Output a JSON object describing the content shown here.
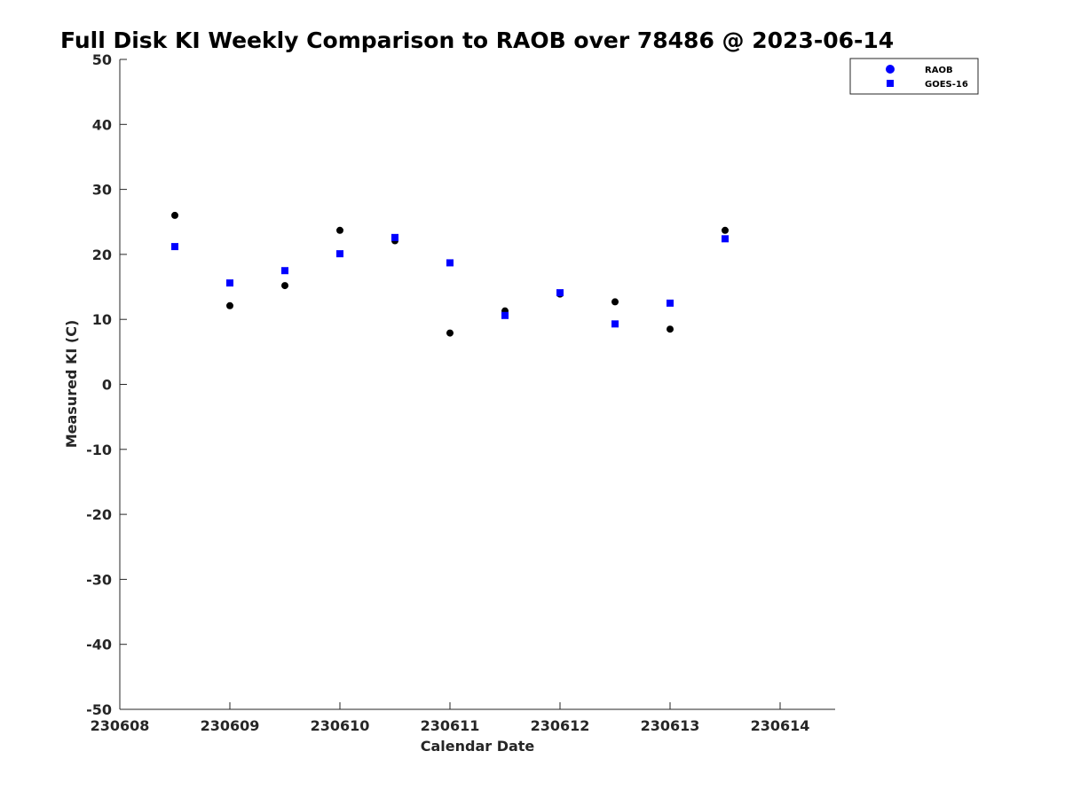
{
  "chart_data": {
    "type": "scatter",
    "title": "Full Disk KI Weekly Comparison to RAOB over 78486 @ 2023-06-14",
    "xlabel": "Calendar Date",
    "ylabel": "Measured KI (C)",
    "xlim": [
      230608,
      230614.5
    ],
    "ylim": [
      -50,
      50
    ],
    "x_ticks": [
      230608,
      230609,
      230610,
      230611,
      230612,
      230613,
      230614
    ],
    "x_tick_labels": [
      "230608",
      "230609",
      "230610",
      "230611",
      "230612",
      "230613",
      "230614"
    ],
    "y_ticks": [
      50,
      40,
      30,
      20,
      10,
      0,
      -10,
      -20,
      -30,
      -40,
      -50
    ],
    "y_tick_labels": [
      "50",
      "40",
      "30",
      "20",
      "10",
      "0",
      "-10",
      "-20",
      "-30",
      "-40",
      "-50"
    ],
    "grid": false,
    "legend_position": "top-right",
    "series": [
      {
        "name": "RAOB",
        "marker": "circle",
        "color": "#000000",
        "legend_color": "#0000ff",
        "x": [
          230608.5,
          230609,
          230609.5,
          230610,
          230610.5,
          230611,
          230611.5,
          230612,
          230612.5,
          230613,
          230613.5
        ],
        "y": [
          26.0,
          12.1,
          15.2,
          23.7,
          22.1,
          7.9,
          11.3,
          13.9,
          12.7,
          8.5,
          23.7
        ]
      },
      {
        "name": "GOES-16",
        "marker": "square",
        "color": "#0000ff",
        "legend_color": "#0000ff",
        "x": [
          230608.5,
          230609,
          230609.5,
          230610,
          230610.5,
          230611,
          230611.5,
          230612,
          230612.5,
          230613,
          230613.5
        ],
        "y": [
          21.2,
          15.6,
          17.5,
          20.1,
          22.6,
          18.7,
          10.6,
          14.1,
          9.3,
          12.5,
          22.4
        ]
      }
    ]
  }
}
